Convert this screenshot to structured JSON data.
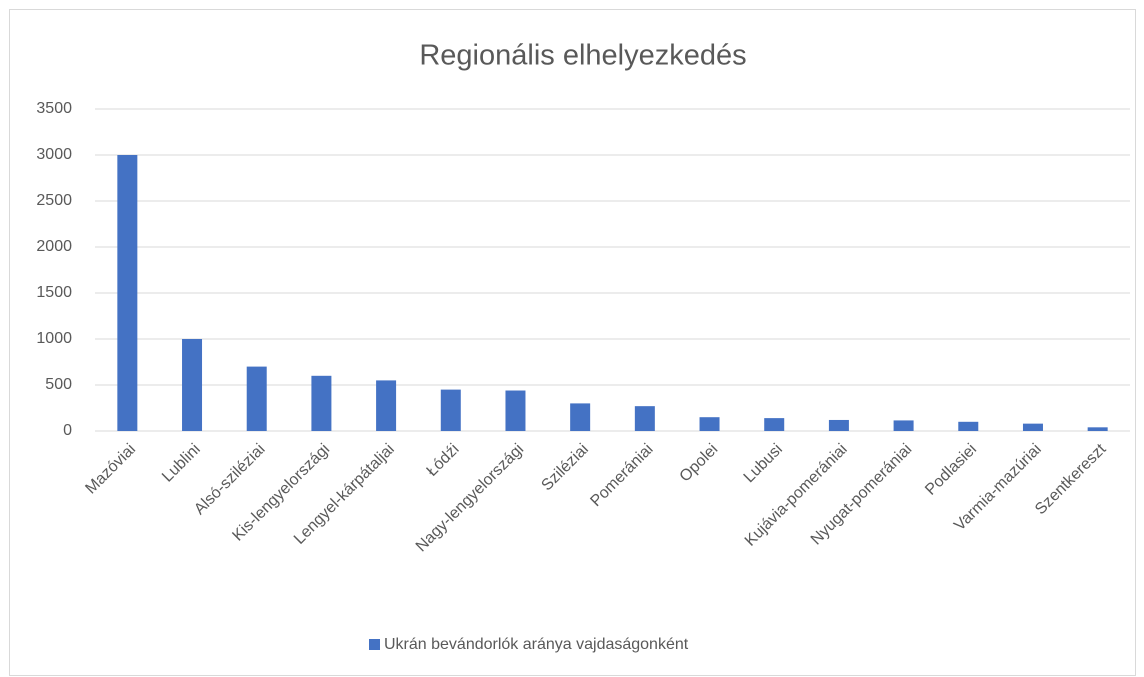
{
  "chart_data": {
    "type": "bar",
    "title": "Regionális elhelyezkedés",
    "categories": [
      "Mazóviai",
      "Lublini",
      "Alsó-sziléziai",
      "Kis-lengyelországi",
      "Lengyel-kárpátaljai",
      "Łódźi",
      "Nagy-lengyelországi",
      "Sziléziai",
      "Pomerániai",
      "Opolei",
      "Lubusi",
      "Kujávia-pomerániai",
      "Nyugat-pomerániai",
      "Podlasiei",
      "Varmia-mazúriai",
      "Szentkereszt"
    ],
    "series": [
      {
        "name": "Ukrán bevándorlók aránya vajdaságonként",
        "color": "#4472c4",
        "values": [
          3000,
          1000,
          700,
          600,
          550,
          450,
          440,
          300,
          270,
          150,
          140,
          120,
          115,
          100,
          80,
          40
        ]
      }
    ],
    "ylim": [
      0,
      3500
    ],
    "yticks": [
      0,
      500,
      1000,
      1500,
      2000,
      2500,
      3000,
      3500
    ],
    "grid": true,
    "legend": "bottom"
  }
}
